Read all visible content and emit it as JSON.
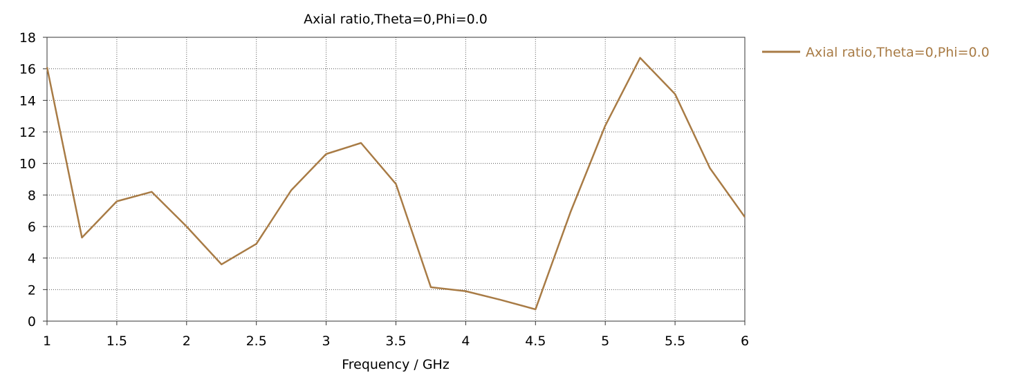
{
  "chart_data": {
    "type": "line",
    "title": "Axial ratio,Theta=0,Phi=0.0",
    "xlabel": "Frequency / GHz",
    "ylabel": "",
    "xlim": [
      1,
      6
    ],
    "ylim": [
      0,
      18
    ],
    "xticks": [
      1,
      1.5,
      2,
      2.5,
      3,
      3.5,
      4,
      4.5,
      5,
      5.5,
      6
    ],
    "yticks": [
      0,
      2,
      4,
      6,
      8,
      10,
      12,
      14,
      16,
      18
    ],
    "xtick_labels": [
      "1",
      "1.5",
      "2",
      "2.5",
      "3",
      "3.5",
      "4",
      "4.5",
      "5",
      "5.5",
      "6"
    ],
    "ytick_labels": [
      "0",
      "2",
      "4",
      "6",
      "8",
      "10",
      "12",
      "14",
      "16",
      "18"
    ],
    "grid": true,
    "legend_position": "right",
    "series": [
      {
        "name": "Axial ratio,Theta=0,Phi=0.0",
        "color": "#A87B45",
        "x": [
          1,
          1.25,
          1.5,
          1.75,
          2,
          2.25,
          2.5,
          2.75,
          3,
          3.25,
          3.5,
          3.75,
          4,
          4.25,
          4.5,
          4.75,
          5,
          5.25,
          5.5,
          5.75,
          6
        ],
        "y": [
          16.1,
          5.3,
          7.6,
          8.2,
          6.0,
          3.6,
          4.9,
          8.3,
          10.6,
          11.3,
          8.7,
          2.15,
          1.9,
          1.35,
          0.75,
          6.9,
          12.4,
          16.7,
          14.4,
          9.7,
          6.6
        ]
      }
    ]
  }
}
